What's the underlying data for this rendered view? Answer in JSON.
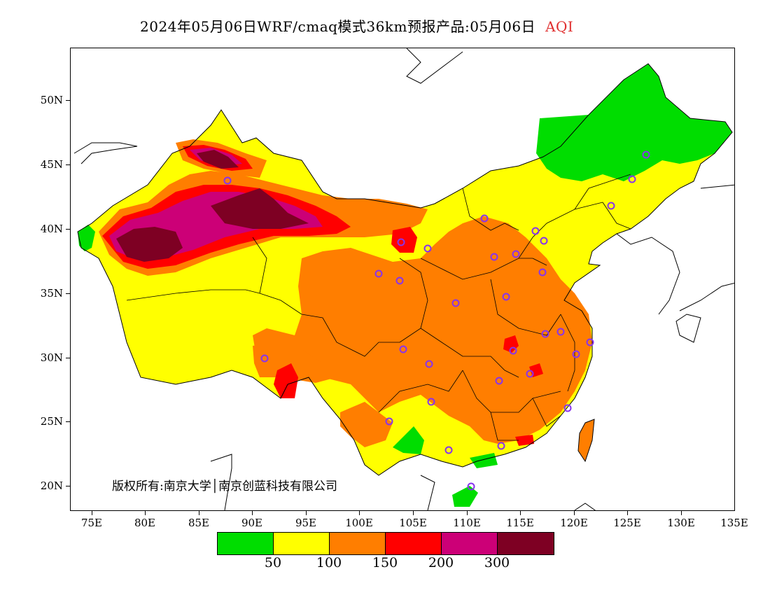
{
  "title": {
    "main": "2024年05月06日WRF/cmaq模式36km预报产品:05月06日",
    "variable": "AQI"
  },
  "y_axis": {
    "labels": [
      "50N",
      "45N",
      "40N",
      "35N",
      "30N",
      "25N",
      "20N"
    ]
  },
  "x_axis": {
    "labels": [
      "75E",
      "80E",
      "85E",
      "90E",
      "95E",
      "100E",
      "105E",
      "110E",
      "115E",
      "120E",
      "125E",
      "130E",
      "135E"
    ]
  },
  "copyright": "版权所有:南京大学│南京创蓝科技有限公司",
  "legend": {
    "colors": [
      "#00dd00",
      "#ffff00",
      "#ff7e00",
      "#ff0000",
      "#cc0077",
      "#7e0023"
    ],
    "labels": [
      "50",
      "100",
      "150",
      "200",
      "300"
    ]
  },
  "stations": {
    "marker_color": "#8833ee"
  }
}
